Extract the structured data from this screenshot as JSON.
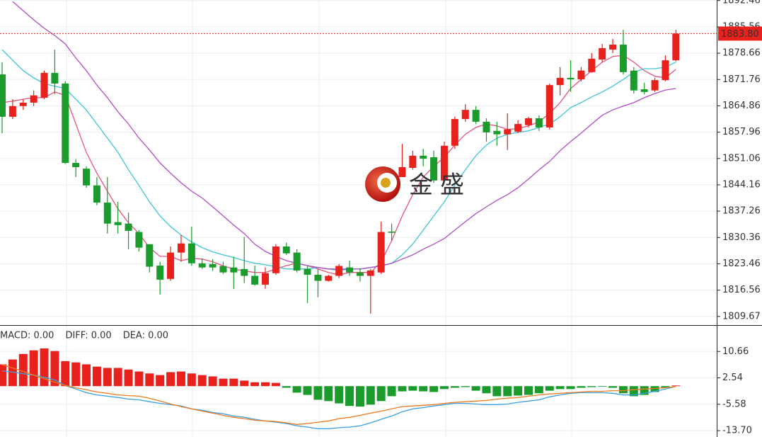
{
  "chart_data": [
    {
      "type": "candlestick",
      "open": [
        1873.1,
        1862.0,
        1864.8,
        1865.7,
        1867.0,
        1873.5,
        1870.7,
        1849.9,
        1848.4,
        1844.0,
        1839.5,
        1834.4,
        1834.0,
        1831.8,
        1828.6,
        1823.0,
        1819.5,
        1826.4,
        1828.8,
        1823.6,
        1823.4,
        1822.9,
        1822.5,
        1822.1,
        1820.3,
        1818.0,
        1821.0,
        1828.0,
        1826.4,
        1822.1,
        1820.6,
        1819.0,
        1820.3,
        1822.5,
        1821.2,
        1820.3,
        1821.2,
        1831.9,
        1846.2,
        1848.6,
        1851.8,
        1851.4,
        1845.3,
        1854.4,
        1861.4,
        1863.8,
        1860.7,
        1858.3,
        1857.4,
        1858.1,
        1859.8,
        1861.6,
        1859.2,
        1870.3,
        1872.2,
        1871.8,
        1873.7,
        1877.0,
        1879.6,
        1880.9,
        1874.1,
        1869.2,
        1868.9,
        1871.6,
        1876.8
      ],
      "high": [
        1876.3,
        1866.6,
        1866.6,
        1868.9,
        1874.1,
        1879.6,
        1871.3,
        1850.9,
        1849.0,
        1846.2,
        1846.2,
        1839.7,
        1836.9,
        1832.3,
        1828.6,
        1824.0,
        1828.0,
        1831.0,
        1833.2,
        1824.9,
        1824.7,
        1824.0,
        1825.3,
        1830.5,
        1823.0,
        1822.5,
        1828.6,
        1829.0,
        1827.3,
        1823.0,
        1822.1,
        1820.6,
        1823.4,
        1824.3,
        1822.3,
        1822.1,
        1834.5,
        1834.0,
        1854.9,
        1853.1,
        1853.6,
        1853.1,
        1855.5,
        1862.0,
        1865.3,
        1864.8,
        1861.6,
        1860.7,
        1862.9,
        1861.1,
        1862.0,
        1862.4,
        1870.7,
        1875.0,
        1876.8,
        1875.0,
        1878.7,
        1881.1,
        1882.4,
        1884.8,
        1875.0,
        1870.9,
        1872.2,
        1878.1,
        1884.8
      ],
      "low": [
        1857.7,
        1861.4,
        1863.8,
        1864.8,
        1866.6,
        1867.9,
        1849.6,
        1846.2,
        1843.4,
        1838.8,
        1831.4,
        1831.4,
        1827.3,
        1826.7,
        1821.2,
        1815.4,
        1819.0,
        1824.0,
        1823.0,
        1822.1,
        1821.6,
        1820.8,
        1816.9,
        1818.4,
        1817.7,
        1816.9,
        1820.6,
        1825.8,
        1821.2,
        1813.2,
        1814.7,
        1818.8,
        1819.7,
        1820.3,
        1818.8,
        1810.4,
        1820.8,
        1829.5,
        1846.2,
        1848.1,
        1849.0,
        1844.7,
        1844.7,
        1853.6,
        1860.7,
        1860.1,
        1855.5,
        1854.4,
        1853.3,
        1857.7,
        1859.2,
        1858.3,
        1858.7,
        1867.6,
        1868.5,
        1871.3,
        1873.5,
        1876.3,
        1878.7,
        1873.1,
        1868.1,
        1867.9,
        1868.5,
        1871.3,
        1876.5
      ],
      "close": [
        1862.0,
        1864.8,
        1865.7,
        1867.6,
        1873.5,
        1870.7,
        1849.9,
        1848.8,
        1844.0,
        1839.5,
        1834.0,
        1833.6,
        1832.1,
        1827.7,
        1822.7,
        1819.3,
        1826.4,
        1828.8,
        1823.6,
        1822.5,
        1822.5,
        1821.2,
        1821.2,
        1820.3,
        1818.0,
        1821.0,
        1828.0,
        1826.2,
        1821.7,
        1820.6,
        1819.0,
        1820.3,
        1822.9,
        1821.2,
        1820.3,
        1821.7,
        1831.8,
        1831.6,
        1848.8,
        1851.8,
        1851.0,
        1845.3,
        1854.4,
        1861.4,
        1863.8,
        1860.7,
        1857.9,
        1857.4,
        1858.7,
        1860.1,
        1861.6,
        1859.2,
        1870.3,
        1872.2,
        1871.8,
        1874.1,
        1877.2,
        1880.0,
        1880.9,
        1873.7,
        1868.9,
        1868.5,
        1871.6,
        1876.8,
        1883.8
      ],
      "up_color": "#e8211c",
      "down_color": "#1a9b2c",
      "series": [
        {
          "color": "#e8537a",
          "values": [
            1865.7,
            1866.1,
            1866.6,
            1867.0,
            1867.0,
            1868.5,
            1867.6,
            1860.1,
            1852.7,
            1847.2,
            1842.5,
            1837.9,
            1834.2,
            1831.4,
            1827.7,
            1825.4,
            1825.4,
            1824.3,
            1824.9,
            1824.7,
            1824.0,
            1822.9,
            1822.1,
            1821.6,
            1821.2,
            1821.2,
            1822.1,
            1823.0,
            1823.6,
            1823.0,
            1822.1,
            1821.2,
            1820.6,
            1821.2,
            1821.2,
            1821.2,
            1824.0,
            1829.5,
            1836.0,
            1841.6,
            1846.2,
            1849.0,
            1851.4,
            1854.6,
            1857.4,
            1859.2,
            1860.1,
            1859.6,
            1858.7,
            1858.9,
            1859.6,
            1860.7,
            1862.9,
            1865.7,
            1869.4,
            1871.8,
            1874.1,
            1876.3,
            1877.8,
            1878.1,
            1876.3,
            1874.1,
            1872.6,
            1872.2,
            1874.4
          ]
        },
        {
          "color": "#3cc6d6",
          "values": [
            1879.6,
            1876.8,
            1874.1,
            1872.2,
            1870.7,
            1870.0,
            1869.4,
            1866.6,
            1863.8,
            1860.1,
            1856.4,
            1852.7,
            1848.1,
            1844.0,
            1839.7,
            1836.0,
            1833.2,
            1831.0,
            1829.2,
            1827.7,
            1826.6,
            1825.8,
            1825.1,
            1824.3,
            1823.6,
            1823.2,
            1822.7,
            1822.1,
            1822.1,
            1822.1,
            1822.5,
            1822.1,
            1821.7,
            1822.1,
            1822.1,
            1822.5,
            1823.0,
            1823.6,
            1825.8,
            1828.6,
            1832.3,
            1836.0,
            1839.7,
            1844.0,
            1848.1,
            1851.8,
            1854.6,
            1856.4,
            1857.4,
            1857.9,
            1858.3,
            1859.2,
            1860.1,
            1862.0,
            1864.4,
            1865.7,
            1867.2,
            1868.5,
            1870.0,
            1871.8,
            1873.7,
            1874.6,
            1874.6,
            1875.0,
            1876.3
          ]
        },
        {
          "color": "#b04dc8",
          "values": [
            null,
            1892.2,
            1889.8,
            1887.4,
            1885.2,
            1883.3,
            1881.1,
            1877.4,
            1874.1,
            1870.3,
            1867.0,
            1863.3,
            1860.1,
            1856.4,
            1853.3,
            1849.9,
            1847.2,
            1844.7,
            1842.5,
            1840.7,
            1838.4,
            1836.0,
            1833.6,
            1831.4,
            1828.6,
            1826.7,
            1825.4,
            1824.3,
            1823.6,
            1823.0,
            1822.5,
            1822.1,
            1822.1,
            1822.1,
            1822.1,
            1822.5,
            1822.9,
            1823.6,
            1824.7,
            1825.8,
            1827.3,
            1828.6,
            1830.1,
            1832.3,
            1834.5,
            1836.6,
            1838.4,
            1840.1,
            1841.6,
            1843.4,
            1845.7,
            1848.1,
            1850.3,
            1853.1,
            1855.5,
            1857.7,
            1860.1,
            1862.4,
            1863.8,
            1864.8,
            1865.7,
            1867.0,
            1868.1,
            1869.0,
            1869.4
          ]
        }
      ],
      "last_price": {
        "value": 1883.8,
        "label": "1883.80"
      },
      "last_price_color": "#e8211c",
      "watermark": "金盛",
      "ylim": [
        1807.4,
        1892.6
      ],
      "yticks": [
        1809.67,
        1816.56,
        1823.46,
        1830.36,
        1837.26,
        1844.16,
        1851.06,
        1857.96,
        1864.86,
        1871.76,
        1878.66,
        1885.56,
        1892.46
      ],
      "grid": true
    },
    {
      "type": "macd",
      "legend": [
        {
          "text": "MACD: 0.00",
          "color": "#e8211c"
        },
        {
          "text": "DIFF: 0.00",
          "color": "#3aa0e0"
        },
        {
          "text": "DEA: 0.00",
          "color": "#f07a20"
        }
      ],
      "values": [
        6.7,
        8.2,
        9.9,
        11.0,
        11.6,
        10.8,
        7.7,
        7.3,
        6.7,
        6.0,
        5.6,
        5.6,
        5.1,
        4.5,
        3.9,
        3.4,
        4.3,
        4.5,
        3.9,
        3.4,
        3.0,
        2.3,
        2.3,
        1.7,
        1.2,
        1.2,
        1.0,
        -0.5,
        -2.0,
        -2.7,
        -4.2,
        -4.6,
        -5.3,
        -6.1,
        -6.3,
        -5.7,
        -4.6,
        -3.1,
        -1.6,
        -1.4,
        -1.6,
        -1.8,
        -0.9,
        -0.5,
        -0.3,
        -1.4,
        -2.2,
        -3.1,
        -3.1,
        -2.9,
        -2.7,
        -2.2,
        -1.4,
        -0.9,
        -0.9,
        -0.5,
        -0.3,
        -0.1,
        -0.5,
        -2.2,
        -3.1,
        -2.7,
        -1.8,
        -0.5,
        0.2
      ],
      "up_color": "#e8211c",
      "down_color": "#1a9b2c",
      "series": [
        {
          "color": "#3aa0e0",
          "values": [
            4.7,
            4.3,
            3.8,
            3.4,
            2.7,
            1.9,
            0.2,
            -0.9,
            -2.0,
            -2.7,
            -3.1,
            -3.5,
            -4.0,
            -4.2,
            -4.8,
            -5.3,
            -5.7,
            -6.1,
            -7.0,
            -7.4,
            -8.1,
            -8.5,
            -9.2,
            -9.6,
            -10.2,
            -10.7,
            -11.1,
            -11.5,
            -12.2,
            -12.6,
            -13.1,
            -13.1,
            -12.8,
            -12.6,
            -12.2,
            -11.3,
            -10.2,
            -9.2,
            -7.9,
            -7.0,
            -6.6,
            -6.1,
            -5.7,
            -5.3,
            -5.3,
            -5.5,
            -5.7,
            -5.7,
            -5.5,
            -5.0,
            -4.6,
            -4.2,
            -3.3,
            -2.7,
            -2.2,
            -2.0,
            -2.0,
            -2.0,
            -2.2,
            -2.7,
            -2.7,
            -2.2,
            -1.6,
            -0.9,
            -0.1
          ]
        },
        {
          "color": "#f07a20",
          "values": [
            6.6,
            5.6,
            4.5,
            3.4,
            2.3,
            1.2,
            0.2,
            -0.5,
            -1.1,
            -1.8,
            -2.2,
            -2.7,
            -2.9,
            -3.1,
            -3.7,
            -4.6,
            -5.5,
            -6.3,
            -7.0,
            -7.7,
            -8.3,
            -9.0,
            -9.6,
            -10.0,
            -10.5,
            -10.7,
            -10.9,
            -11.3,
            -11.8,
            -11.5,
            -11.1,
            -10.7,
            -10.0,
            -9.6,
            -9.0,
            -8.3,
            -7.7,
            -7.0,
            -6.3,
            -6.1,
            -5.9,
            -5.7,
            -5.3,
            -5.0,
            -4.8,
            -4.6,
            -4.4,
            -4.0,
            -3.7,
            -3.5,
            -3.1,
            -2.7,
            -2.4,
            -2.2,
            -2.0,
            -1.8,
            -1.6,
            -1.6,
            -1.4,
            -1.4,
            -1.1,
            -0.9,
            -0.7,
            -0.5,
            -0.1
          ]
        }
      ],
      "ylim": [
        -15.65,
        18.56
      ],
      "yticks": [
        10.66,
        2.54,
        -5.58,
        {
          "value": -13.7,
          "label": "-13.70"
        }
      ],
      "grid": true
    }
  ]
}
